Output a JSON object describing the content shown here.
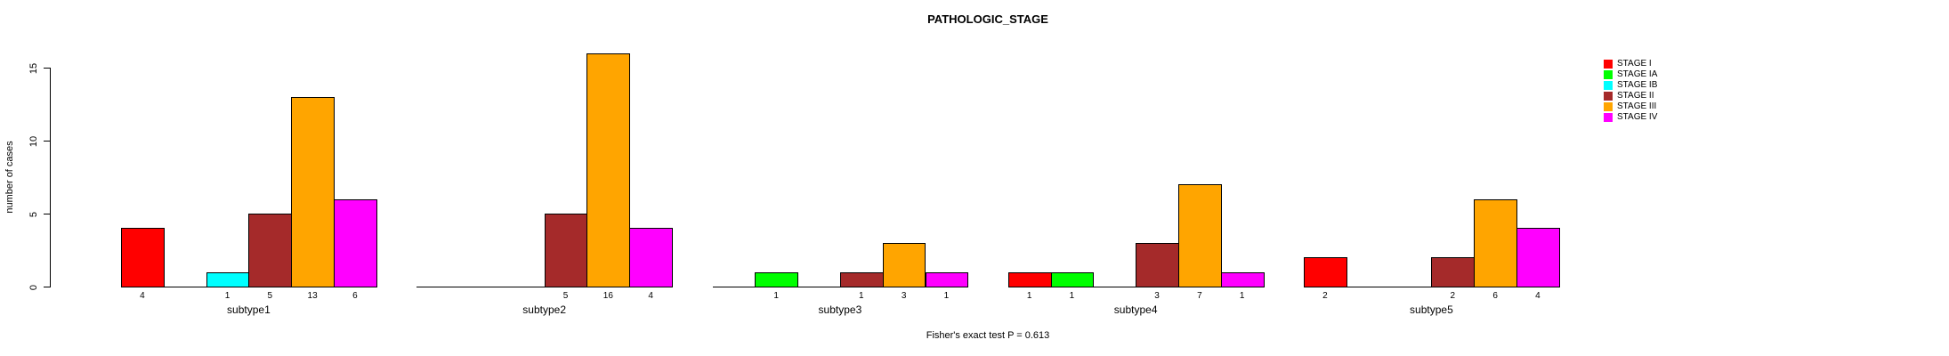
{
  "chart_data": {
    "type": "bar",
    "title": "PATHOLOGIC_STAGE",
    "xlabel": "",
    "ylabel": "number of cases",
    "ylim": [
      0,
      16
    ],
    "yticks": [
      0,
      5,
      10,
      15
    ],
    "grid": false,
    "legend_position": "top-right",
    "show_value_labels": true,
    "categories": [
      "subtype1",
      "subtype2",
      "subtype3",
      "subtype4",
      "subtype5"
    ],
    "series": [
      {
        "name": "STAGE I",
        "color": "#FF0000",
        "values": [
          4,
          0,
          0,
          1,
          2
        ]
      },
      {
        "name": "STAGE IA",
        "color": "#00FF00",
        "values": [
          0,
          0,
          1,
          1,
          0
        ]
      },
      {
        "name": "STAGE IB",
        "color": "#00FFFF",
        "values": [
          1,
          0,
          0,
          0,
          0
        ]
      },
      {
        "name": "STAGE II",
        "color": "#A52A2A",
        "values": [
          5,
          5,
          1,
          3,
          2
        ]
      },
      {
        "name": "STAGE III",
        "color": "#FFA500",
        "values": [
          13,
          16,
          3,
          7,
          6
        ]
      },
      {
        "name": "STAGE IV",
        "color": "#FF00FF",
        "values": [
          6,
          4,
          1,
          1,
          4
        ]
      }
    ],
    "annotation": "Fisher's exact test P = 0.613"
  }
}
